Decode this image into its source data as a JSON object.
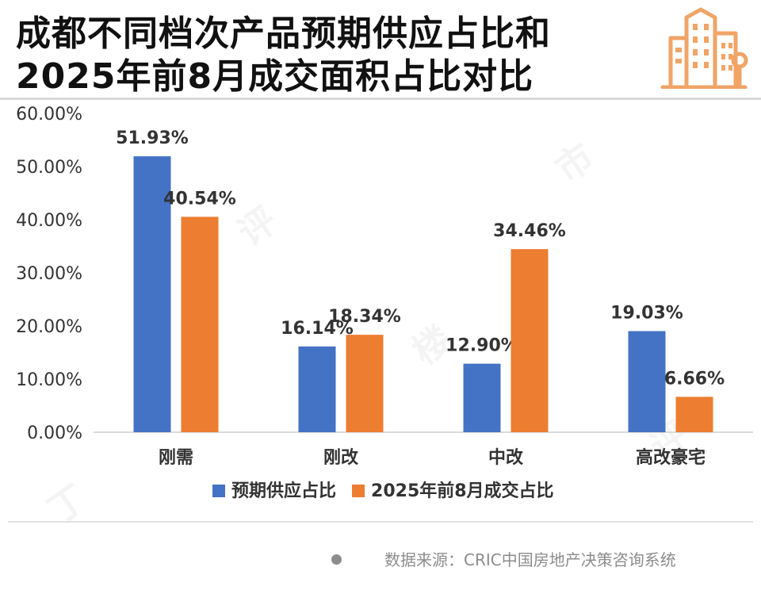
{
  "title": {
    "line1": "成都不同档次产品预期供应占比和",
    "line2": "2025年前8月成交面积占比对比"
  },
  "logo_icon": "city-buildings-icon",
  "source": "数据来源：CRIC中国房地产决策咨询系统",
  "colors": {
    "series1": "#4472c4",
    "series2": "#ed7d31",
    "logo": "#f0a466"
  },
  "chart_data": {
    "type": "bar",
    "categories": [
      "刚需",
      "刚改",
      "中改",
      "高改豪宅"
    ],
    "series": [
      {
        "name": "预期供应占比",
        "values": [
          51.93,
          16.14,
          12.9,
          19.03
        ],
        "labels": [
          "51.93%",
          "16.14%",
          "12.90%",
          "19.03%"
        ]
      },
      {
        "name": "2025年前8月成交占比",
        "values": [
          40.54,
          18.34,
          34.46,
          6.66
        ],
        "labels": [
          "40.54%",
          "18.34%",
          "34.46%",
          "6.66%"
        ]
      }
    ],
    "yticks": [
      "0.00%",
      "10.00%",
      "20.00%",
      "30.00%",
      "40.00%",
      "50.00%",
      "60.00%"
    ],
    "ylim": [
      0,
      60
    ],
    "grid": false,
    "legend": "bottom-center",
    "title": "",
    "xlabel": "",
    "ylabel": ""
  }
}
